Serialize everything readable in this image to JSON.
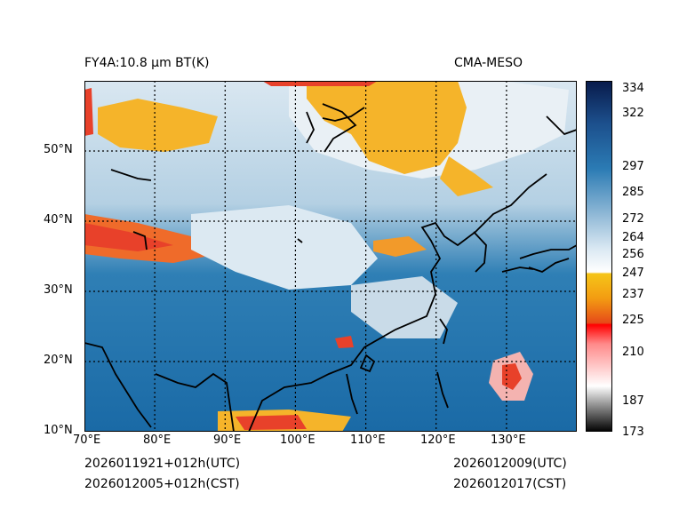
{
  "header": {
    "left_title": "FY4A:10.8 µm BT(K)",
    "right_title": "CMA-MESO"
  },
  "footer": {
    "init_utc": "2026011921+012h(UTC)",
    "init_cst": "2026012005+012h(CST)",
    "valid_utc": "2026012009(UTC)",
    "valid_cst": "2026012017(CST)"
  },
  "map": {
    "lon_labels": [
      "70°E",
      "80°E",
      "90°E",
      "100°E",
      "110°E",
      "120°E",
      "130°E"
    ],
    "lat_labels": [
      "10°N",
      "20°N",
      "30°N",
      "40°N",
      "50°N"
    ],
    "lon_range": [
      70,
      140
    ],
    "lat_range": [
      10,
      60
    ]
  },
  "colorbar": {
    "min": 173,
    "max": 338,
    "tick_labels": [
      "334",
      "322",
      "297",
      "285",
      "272",
      "264",
      "256",
      "247",
      "237",
      "225",
      "210",
      "187",
      "173"
    ],
    "tick_values": [
      334,
      322,
      297,
      285,
      272,
      264,
      256,
      247,
      237,
      225,
      210,
      187,
      173
    ]
  },
  "colors": {
    "ocean": "#1f77b4",
    "cloud_cold": "#f5a623",
    "cloud_red": "#e8412a",
    "cloud_white": "#f2f4f6"
  }
}
